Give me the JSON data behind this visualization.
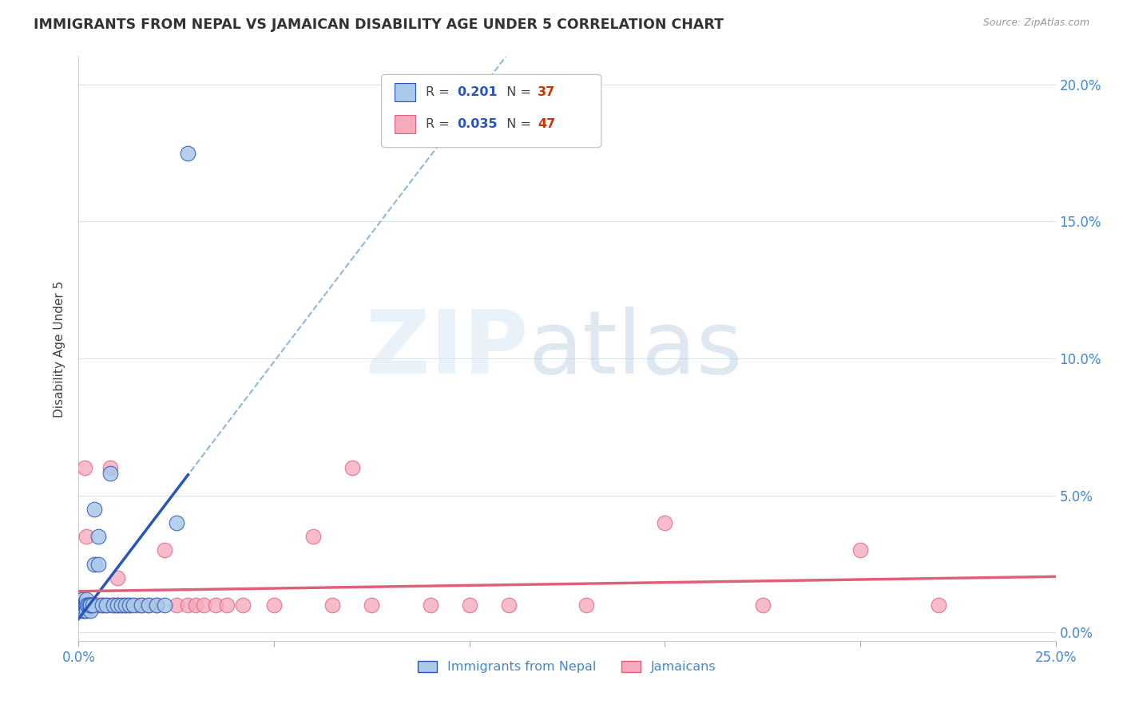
{
  "title": "IMMIGRANTS FROM NEPAL VS JAMAICAN DISABILITY AGE UNDER 5 CORRELATION CHART",
  "source": "Source: ZipAtlas.com",
  "ylabel": "Disability Age Under 5",
  "legend_nepal_r": "0.201",
  "legend_nepal_n": "37",
  "legend_jamaica_r": "0.035",
  "legend_jamaica_n": "47",
  "nepal_color": "#aac8e8",
  "jamaica_color": "#f5aabe",
  "nepal_line_color": "#2855b8",
  "jamaica_line_color": "#e0607a",
  "nepal_dashed_color": "#90b8d8",
  "tick_color": "#4488cc",
  "text_color": "#444444",
  "grid_color": "#d8e4f0",
  "background_color": "#ffffff",
  "nepal_x": [
    0.0008,
    0.001,
    0.001,
    0.0012,
    0.0014,
    0.0015,
    0.0016,
    0.0018,
    0.002,
    0.002,
    0.002,
    0.0022,
    0.0025,
    0.003,
    0.003,
    0.003,
    0.003,
    0.0035,
    0.004,
    0.004,
    0.005,
    0.005,
    0.006,
    0.007,
    0.008,
    0.009,
    0.01,
    0.011,
    0.012,
    0.013,
    0.014,
    0.016,
    0.018,
    0.02,
    0.022,
    0.025,
    0.028
  ],
  "nepal_y": [
    0.01,
    0.008,
    0.012,
    0.01,
    0.01,
    0.008,
    0.01,
    0.01,
    0.01,
    0.012,
    0.008,
    0.01,
    0.01,
    0.01,
    0.008,
    0.01,
    0.01,
    0.01,
    0.025,
    0.045,
    0.025,
    0.035,
    0.01,
    0.01,
    0.058,
    0.01,
    0.01,
    0.01,
    0.01,
    0.01,
    0.01,
    0.01,
    0.01,
    0.01,
    0.01,
    0.04,
    0.175
  ],
  "jamaica_x": [
    0.0005,
    0.001,
    0.0012,
    0.0015,
    0.002,
    0.002,
    0.003,
    0.003,
    0.004,
    0.004,
    0.005,
    0.005,
    0.006,
    0.007,
    0.008,
    0.008,
    0.009,
    0.01,
    0.01,
    0.011,
    0.012,
    0.013,
    0.015,
    0.016,
    0.018,
    0.02,
    0.022,
    0.025,
    0.028,
    0.03,
    0.032,
    0.035,
    0.038,
    0.042,
    0.05,
    0.06,
    0.065,
    0.07,
    0.075,
    0.09,
    0.1,
    0.11,
    0.13,
    0.15,
    0.175,
    0.2,
    0.22
  ],
  "jamaica_y": [
    0.01,
    0.01,
    0.01,
    0.06,
    0.01,
    0.035,
    0.01,
    0.01,
    0.01,
    0.01,
    0.01,
    0.01,
    0.01,
    0.01,
    0.01,
    0.06,
    0.01,
    0.01,
    0.02,
    0.01,
    0.01,
    0.01,
    0.01,
    0.01,
    0.01,
    0.01,
    0.03,
    0.01,
    0.01,
    0.01,
    0.01,
    0.01,
    0.01,
    0.01,
    0.01,
    0.035,
    0.01,
    0.06,
    0.01,
    0.01,
    0.01,
    0.01,
    0.01,
    0.04,
    0.01,
    0.03,
    0.01
  ],
  "xlim": [
    0.0,
    0.25
  ],
  "ylim": [
    -0.003,
    0.21
  ],
  "yticks": [
    0.0,
    0.05,
    0.1,
    0.15,
    0.2
  ],
  "ytick_labels": [
    "0.0%",
    "5.0%",
    "10.0%",
    "15.0%",
    "20.0%"
  ]
}
